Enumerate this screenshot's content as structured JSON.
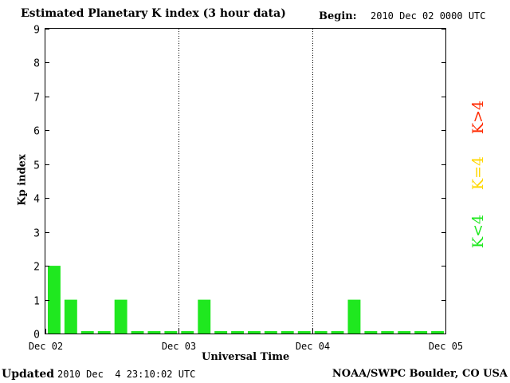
{
  "header": {
    "title": "Estimated Planetary K index (3 hour data)",
    "begin_label": "Begin:",
    "begin_value": "2010 Dec 02 0000 UTC"
  },
  "footer": {
    "updated_label": "Updated",
    "updated_value": "2010 Dec  4 23:10:02 UTC",
    "source": "NOAA/SWPC Boulder, CO USA"
  },
  "legend": {
    "high": "K>4",
    "mid": "K=4",
    "low": "K<4"
  },
  "colors": {
    "low": "#1fe81f",
    "mid": "#ffd700",
    "high": "#ff2a00",
    "axis": "#000000"
  },
  "chart_data": {
    "type": "bar",
    "title": "Estimated Planetary K index (3 hour data)",
    "xlabel": "Universal Time",
    "ylabel": "Kp index",
    "ylim": [
      0,
      9
    ],
    "yticks": [
      "0",
      "1",
      "2",
      "3",
      "4",
      "5",
      "6",
      "7",
      "8",
      "9"
    ],
    "xticks": [
      "Dec 02",
      "Dec 03",
      "Dec 04",
      "Dec 05"
    ],
    "interval_hours": 3,
    "values": [
      2,
      1,
      0,
      0,
      1,
      0,
      0,
      0,
      0,
      1,
      0,
      0,
      0,
      0,
      0,
      0,
      0,
      0,
      1,
      0,
      0,
      0,
      0,
      0
    ],
    "grid": "vertical dotted lines at day boundaries",
    "legend_placement": "right, vertical"
  }
}
